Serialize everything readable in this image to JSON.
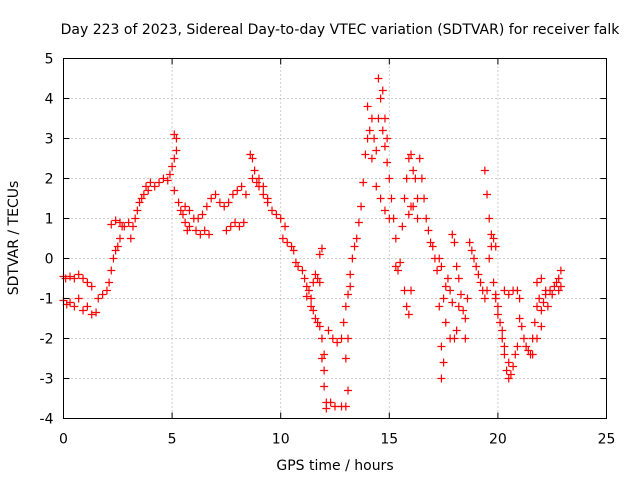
{
  "chart_data": {
    "type": "scatter",
    "title": "Day 223 of 2023, Sidereal Day-to-day VTEC variation (SDTVAR) for receiver falk",
    "xlabel": "GPS time / hours",
    "ylabel": "SDTVAR / TECUs",
    "xlim": [
      0,
      25
    ],
    "ylim": [
      -4,
      5
    ],
    "xticks": [
      0,
      5,
      10,
      15,
      20,
      25
    ],
    "yticks": [
      -4,
      -3,
      -2,
      -1,
      0,
      1,
      2,
      3,
      4,
      5
    ],
    "grid": true,
    "marker": "plus",
    "color": "#ff0000",
    "series": [
      {
        "name": "falk",
        "points": [
          [
            0.0,
            -0.45
          ],
          [
            0.1,
            -0.5
          ],
          [
            0.3,
            -0.45
          ],
          [
            0.5,
            -0.5
          ],
          [
            0.7,
            -0.4
          ],
          [
            0.9,
            -0.5
          ],
          [
            1.1,
            -0.6
          ],
          [
            1.3,
            -0.7
          ],
          [
            0.0,
            -1.05
          ],
          [
            0.15,
            -1.15
          ],
          [
            0.3,
            -1.1
          ],
          [
            0.5,
            -1.2
          ],
          [
            0.7,
            -1.0
          ],
          [
            0.9,
            -1.3
          ],
          [
            1.1,
            -1.2
          ],
          [
            1.3,
            -1.4
          ],
          [
            1.5,
            -1.35
          ],
          [
            1.6,
            -1.0
          ],
          [
            1.8,
            -0.9
          ],
          [
            2.0,
            -0.8
          ],
          [
            2.1,
            -0.6
          ],
          [
            2.2,
            -0.3
          ],
          [
            2.3,
            0.0
          ],
          [
            2.4,
            0.2
          ],
          [
            2.5,
            0.3
          ],
          [
            2.6,
            0.5
          ],
          [
            2.7,
            0.8
          ],
          [
            2.2,
            0.85
          ],
          [
            2.4,
            0.95
          ],
          [
            2.6,
            0.9
          ],
          [
            2.8,
            0.8
          ],
          [
            3.0,
            0.9
          ],
          [
            3.1,
            0.5
          ],
          [
            3.2,
            0.8
          ],
          [
            3.3,
            1.0
          ],
          [
            3.4,
            1.2
          ],
          [
            3.5,
            1.4
          ],
          [
            3.6,
            1.5
          ],
          [
            3.7,
            1.6
          ],
          [
            3.8,
            1.8
          ],
          [
            3.9,
            1.7
          ],
          [
            4.0,
            1.9
          ],
          [
            4.2,
            1.8
          ],
          [
            4.4,
            1.9
          ],
          [
            4.6,
            2.0
          ],
          [
            4.8,
            1.95
          ],
          [
            4.9,
            2.1
          ],
          [
            5.0,
            2.3
          ],
          [
            5.1,
            2.5
          ],
          [
            5.2,
            2.7
          ],
          [
            5.1,
            3.1
          ],
          [
            5.2,
            3.0
          ],
          [
            5.1,
            1.7
          ],
          [
            5.3,
            1.4
          ],
          [
            5.4,
            1.2
          ],
          [
            5.5,
            1.1
          ],
          [
            5.6,
            0.9
          ],
          [
            5.7,
            0.7
          ],
          [
            5.8,
            0.8
          ],
          [
            6.0,
            1.0
          ],
          [
            6.2,
            1.0
          ],
          [
            6.4,
            1.1
          ],
          [
            6.6,
            1.3
          ],
          [
            6.8,
            1.5
          ],
          [
            7.0,
            1.6
          ],
          [
            7.2,
            1.4
          ],
          [
            7.4,
            1.3
          ],
          [
            7.6,
            1.4
          ],
          [
            7.8,
            1.6
          ],
          [
            8.0,
            1.7
          ],
          [
            8.2,
            1.8
          ],
          [
            8.4,
            1.6
          ],
          [
            5.6,
            1.3
          ],
          [
            5.8,
            1.2
          ],
          [
            6.1,
            0.7
          ],
          [
            6.3,
            0.6
          ],
          [
            6.5,
            0.7
          ],
          [
            6.7,
            0.6
          ],
          [
            7.5,
            0.7
          ],
          [
            7.7,
            0.8
          ],
          [
            7.9,
            0.9
          ],
          [
            8.1,
            0.8
          ],
          [
            8.3,
            0.9
          ],
          [
            8.6,
            2.6
          ],
          [
            8.7,
            2.5
          ],
          [
            8.8,
            2.2
          ],
          [
            8.9,
            1.9
          ],
          [
            9.0,
            1.8
          ],
          [
            9.2,
            1.6
          ],
          [
            9.4,
            1.4
          ],
          [
            9.6,
            1.2
          ],
          [
            9.8,
            1.1
          ],
          [
            10.0,
            1.0
          ],
          [
            10.2,
            0.8
          ],
          [
            8.7,
            2.0
          ],
          [
            9.0,
            2.0
          ],
          [
            9.2,
            1.8
          ],
          [
            9.4,
            1.5
          ],
          [
            10.1,
            0.5
          ],
          [
            10.3,
            0.4
          ],
          [
            10.5,
            0.3
          ],
          [
            10.6,
            0.2
          ],
          [
            10.7,
            -0.1
          ],
          [
            10.8,
            -0.2
          ],
          [
            11.0,
            -0.3
          ],
          [
            11.1,
            -0.5
          ],
          [
            11.2,
            -0.7
          ],
          [
            11.3,
            -0.8
          ],
          [
            11.4,
            -1.0
          ],
          [
            11.5,
            -0.6
          ],
          [
            11.6,
            -0.4
          ],
          [
            11.7,
            -0.5
          ],
          [
            11.8,
            -0.6
          ],
          [
            11.2,
            -0.95
          ],
          [
            11.4,
            -1.2
          ],
          [
            11.6,
            -1.5
          ],
          [
            11.8,
            -1.7
          ],
          [
            11.9,
            -2.0
          ],
          [
            12.0,
            -2.4
          ],
          [
            12.0,
            -2.8
          ],
          [
            12.0,
            -3.2
          ],
          [
            12.1,
            -3.6
          ],
          [
            12.1,
            -3.75
          ],
          [
            11.5,
            -1.3
          ],
          [
            11.7,
            -1.6
          ],
          [
            11.9,
            -2.5
          ],
          [
            12.2,
            -1.8
          ],
          [
            12.4,
            -2.0
          ],
          [
            12.6,
            -2.1
          ],
          [
            12.8,
            -2.0
          ],
          [
            12.9,
            -1.6
          ],
          [
            13.0,
            -1.2
          ],
          [
            13.1,
            -0.9
          ],
          [
            13.2,
            -0.7
          ],
          [
            12.3,
            -3.6
          ],
          [
            12.5,
            -3.7
          ],
          [
            12.8,
            -3.7
          ],
          [
            13.0,
            -3.7
          ],
          [
            13.1,
            -3.3
          ],
          [
            13.0,
            -2.5
          ],
          [
            13.1,
            -2.0
          ],
          [
            11.9,
            0.25
          ],
          [
            11.8,
            0.1
          ],
          [
            13.2,
            -0.4
          ],
          [
            13.3,
            0.0
          ],
          [
            13.4,
            0.3
          ],
          [
            13.5,
            0.5
          ],
          [
            13.6,
            0.9
          ],
          [
            13.7,
            1.3
          ],
          [
            13.8,
            1.9
          ],
          [
            13.9,
            2.6
          ],
          [
            14.0,
            3.0
          ],
          [
            14.1,
            3.2
          ],
          [
            14.2,
            3.5
          ],
          [
            14.3,
            3.0
          ],
          [
            14.4,
            2.7
          ],
          [
            14.5,
            3.5
          ],
          [
            14.5,
            4.5
          ],
          [
            14.6,
            4.0
          ],
          [
            14.7,
            3.2
          ],
          [
            14.8,
            2.8
          ],
          [
            14.9,
            2.4
          ],
          [
            14.7,
            4.2
          ],
          [
            14.8,
            3.5
          ],
          [
            14.9,
            3.0
          ],
          [
            14.0,
            3.8
          ],
          [
            14.2,
            2.5
          ],
          [
            14.4,
            1.8
          ],
          [
            14.6,
            1.5
          ],
          [
            14.8,
            1.2
          ],
          [
            15.0,
            1.0
          ],
          [
            15.0,
            2.0
          ],
          [
            15.1,
            1.5
          ],
          [
            15.2,
            1.0
          ],
          [
            15.3,
            0.5
          ],
          [
            15.3,
            -0.2
          ],
          [
            15.4,
            -0.3
          ],
          [
            15.5,
            -0.1
          ],
          [
            15.6,
            0.8
          ],
          [
            15.7,
            1.5
          ],
          [
            15.8,
            2.0
          ],
          [
            15.9,
            2.5
          ],
          [
            16.0,
            2.6
          ],
          [
            16.1,
            2.2
          ],
          [
            16.2,
            2.0
          ],
          [
            16.3,
            1.5
          ],
          [
            15.9,
            1.1
          ],
          [
            16.0,
            1.3
          ],
          [
            16.1,
            1.3
          ],
          [
            16.3,
            1.0
          ],
          [
            16.4,
            2.5
          ],
          [
            16.5,
            2.0
          ],
          [
            16.6,
            1.5
          ],
          [
            16.7,
            1.0
          ],
          [
            16.8,
            0.7
          ],
          [
            16.9,
            0.4
          ],
          [
            15.7,
            -0.8
          ],
          [
            15.8,
            -1.2
          ],
          [
            15.9,
            -1.4
          ],
          [
            16.0,
            -0.8
          ],
          [
            17.0,
            0.3
          ],
          [
            17.1,
            0.0
          ],
          [
            17.2,
            -0.3
          ],
          [
            17.3,
            -1.2
          ],
          [
            17.4,
            -2.2
          ],
          [
            17.5,
            -2.6
          ],
          [
            17.4,
            -3.0
          ],
          [
            17.5,
            -1.0
          ],
          [
            17.6,
            -0.7
          ],
          [
            17.7,
            -0.5
          ],
          [
            17.8,
            -0.8
          ],
          [
            17.9,
            -1.1
          ],
          [
            18.0,
            -2.0
          ],
          [
            18.1,
            -1.8
          ],
          [
            18.2,
            -1.2
          ],
          [
            17.3,
            0.0
          ],
          [
            17.4,
            -0.2
          ],
          [
            17.6,
            -1.6
          ],
          [
            17.8,
            -2.0
          ],
          [
            17.9,
            0.6
          ],
          [
            18.0,
            0.4
          ],
          [
            18.1,
            -0.2
          ],
          [
            18.2,
            -0.5
          ],
          [
            18.3,
            -0.9
          ],
          [
            18.4,
            -1.3
          ],
          [
            18.5,
            -1.5
          ],
          [
            18.5,
            -2.0
          ],
          [
            18.6,
            -1.0
          ],
          [
            18.7,
            0.4
          ],
          [
            18.8,
            0.2
          ],
          [
            18.9,
            0.0
          ],
          [
            19.0,
            -0.2
          ],
          [
            19.1,
            -0.4
          ],
          [
            19.2,
            -0.6
          ],
          [
            19.3,
            -0.8
          ],
          [
            19.4,
            -1.0
          ],
          [
            19.5,
            -0.8
          ],
          [
            19.6,
            0.0
          ],
          [
            19.7,
            0.3
          ],
          [
            19.8,
            0.5
          ],
          [
            19.9,
            0.3
          ],
          [
            19.4,
            2.2
          ],
          [
            19.5,
            1.6
          ],
          [
            19.6,
            1.0
          ],
          [
            19.7,
            0.6
          ],
          [
            19.8,
            -0.6
          ],
          [
            19.9,
            -0.9
          ],
          [
            20.0,
            -1.2
          ],
          [
            20.1,
            -1.6
          ],
          [
            20.2,
            -2.0
          ],
          [
            20.3,
            -2.4
          ],
          [
            20.4,
            -2.8
          ],
          [
            20.5,
            -3.0
          ],
          [
            20.6,
            -2.9
          ],
          [
            20.7,
            -2.7
          ],
          [
            20.8,
            -2.4
          ],
          [
            20.9,
            -2.2
          ],
          [
            19.9,
            -1.0
          ],
          [
            20.0,
            -1.4
          ],
          [
            20.2,
            -1.8
          ],
          [
            20.3,
            -2.2
          ],
          [
            20.5,
            -2.6
          ],
          [
            20.3,
            -0.8
          ],
          [
            20.5,
            -0.9
          ],
          [
            20.7,
            -0.8
          ],
          [
            20.9,
            -0.8
          ],
          [
            21.0,
            -1.0
          ],
          [
            21.0,
            -1.5
          ],
          [
            21.1,
            -1.7
          ],
          [
            21.2,
            -2.0
          ],
          [
            21.3,
            -2.2
          ],
          [
            21.4,
            -2.3
          ],
          [
            21.5,
            -2.4
          ],
          [
            21.6,
            -2.0
          ],
          [
            21.7,
            -1.6
          ],
          [
            21.8,
            -1.2
          ],
          [
            21.9,
            -1.0
          ],
          [
            22.0,
            -1.3
          ],
          [
            22.1,
            -1.1
          ],
          [
            22.2,
            -0.9
          ],
          [
            22.3,
            -1.2
          ],
          [
            22.4,
            -0.8
          ],
          [
            21.6,
            -2.4
          ],
          [
            21.8,
            -2.0
          ],
          [
            22.0,
            -1.7
          ],
          [
            21.8,
            -0.6
          ],
          [
            22.0,
            -0.5
          ],
          [
            22.2,
            -0.8
          ],
          [
            22.5,
            -0.9
          ],
          [
            22.6,
            -0.7
          ],
          [
            22.7,
            -0.6
          ],
          [
            22.8,
            -0.5
          ],
          [
            22.9,
            -0.3
          ],
          [
            22.9,
            -0.7
          ],
          [
            22.8,
            -0.8
          ]
        ]
      }
    ]
  }
}
